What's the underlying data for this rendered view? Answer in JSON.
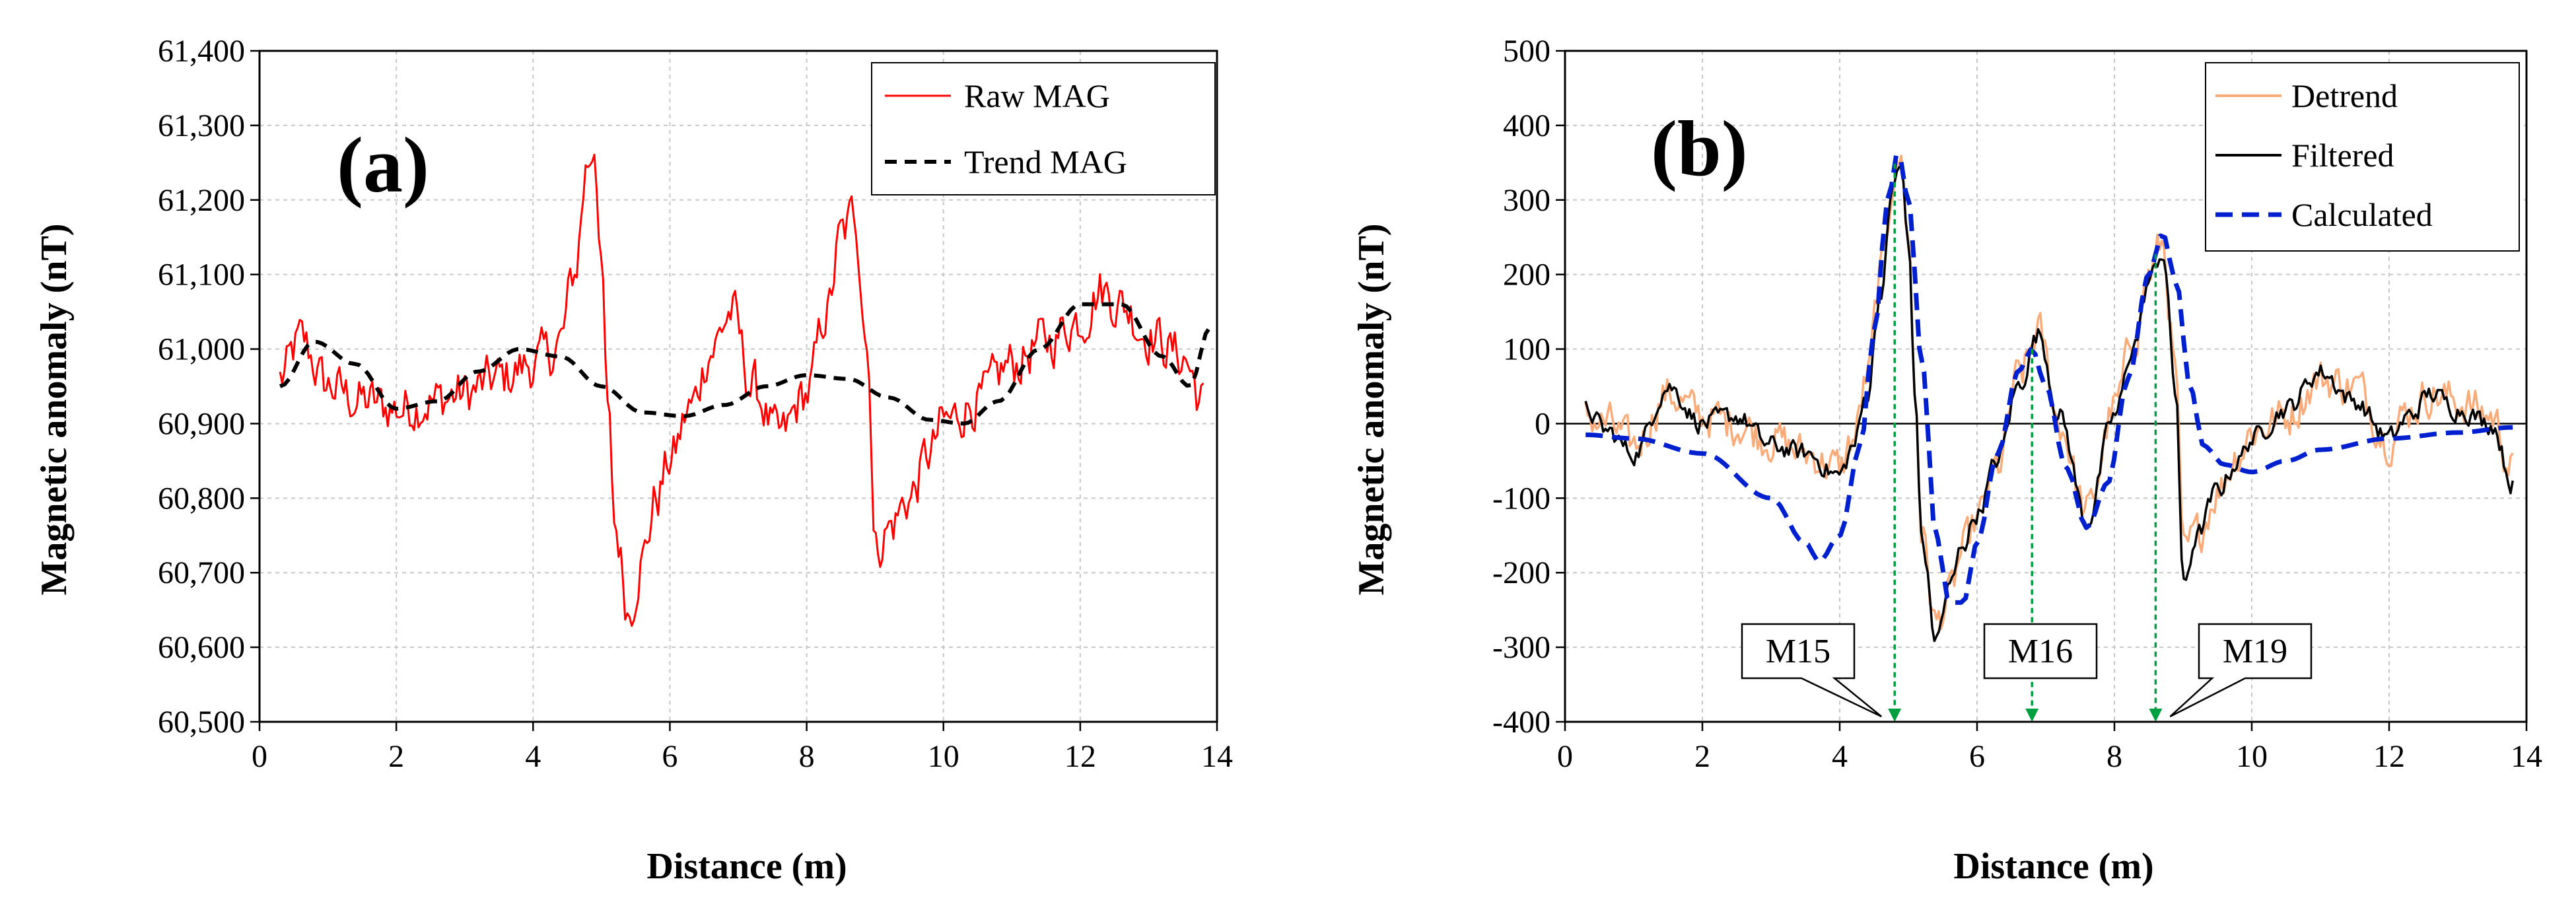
{
  "chart_data": [
    {
      "type": "line",
      "panel_label": "(a)",
      "xlabel": "Distance (m)",
      "ylabel": "Magnetic anomaly (nT)",
      "xlim": [
        0,
        14
      ],
      "ylim": [
        60500,
        61400
      ],
      "x_ticks": [
        0,
        2,
        4,
        6,
        8,
        10,
        12,
        14
      ],
      "y_ticks": [
        60500,
        60600,
        60700,
        60800,
        60900,
        61000,
        61100,
        61200,
        61300,
        61400
      ],
      "x_tick_labels": [
        "0",
        "2",
        "4",
        "6",
        "8",
        "10",
        "12",
        "14"
      ],
      "y_tick_labels": [
        "60,500",
        "60,600",
        "60,700",
        "60,800",
        "60,900",
        "61,000",
        "61,100",
        "61,200",
        "61,300",
        "61,400"
      ],
      "grid": true,
      "legend_position": "top-right",
      "series": [
        {
          "name": "Raw MAG",
          "color": "#ff0000",
          "style": "solid",
          "noise": 55,
          "x": [
            0.3,
            0.6,
            1.0,
            1.5,
            2.0,
            2.5,
            3.0,
            3.5,
            4.0,
            4.2,
            4.4,
            4.6,
            4.8,
            4.9,
            5.0,
            5.1,
            5.2,
            5.4,
            5.6,
            5.8,
            6.0,
            6.3,
            6.6,
            6.9,
            7.2,
            7.6,
            8.0,
            8.3,
            8.5,
            8.7,
            8.9,
            9.0,
            9.2,
            9.5,
            9.8,
            10.0,
            10.5,
            11.0,
            11.5,
            12.0,
            12.3,
            12.6,
            13.0,
            13.5,
            13.8
          ],
          "values": [
            60960,
            61010,
            60950,
            60930,
            60920,
            60930,
            60940,
            60960,
            60980,
            60990,
            61010,
            61100,
            61250,
            61280,
            61100,
            60900,
            60760,
            60650,
            60720,
            60800,
            60850,
            60920,
            61000,
            61050,
            60950,
            60880,
            60940,
            61050,
            61150,
            61180,
            61000,
            60730,
            60760,
            60800,
            60860,
            60900,
            60930,
            60980,
            61010,
            61040,
            61080,
            61060,
            61020,
            60990,
            60930
          ]
        },
        {
          "name": "Trend MAG",
          "color": "#000000",
          "style": "dashed",
          "x": [
            0.3,
            0.8,
            1.4,
            2.0,
            2.6,
            3.2,
            3.8,
            4.4,
            5.0,
            5.6,
            6.2,
            6.8,
            7.4,
            8.0,
            8.6,
            9.2,
            9.8,
            10.3,
            10.8,
            11.4,
            12.0,
            12.6,
            13.2,
            13.6,
            13.9
          ],
          "values": [
            60950,
            61010,
            60980,
            60920,
            60930,
            60970,
            61000,
            60990,
            60950,
            60915,
            60910,
            60925,
            60950,
            60965,
            60960,
            60935,
            60905,
            60900,
            60930,
            61000,
            61060,
            61060,
            60990,
            60950,
            61030
          ]
        }
      ]
    },
    {
      "type": "line",
      "panel_label": "(b)",
      "xlabel": "Distance (m)",
      "ylabel": "Magnetic anomaly (nT)",
      "xlim": [
        0,
        14
      ],
      "ylim": [
        -400,
        500
      ],
      "x_ticks": [
        0,
        2,
        4,
        6,
        8,
        10,
        12,
        14
      ],
      "y_ticks": [
        -400,
        -300,
        -200,
        -100,
        0,
        100,
        200,
        300,
        400,
        500
      ],
      "x_tick_labels": [
        "0",
        "2",
        "4",
        "6",
        "8",
        "10",
        "12",
        "14"
      ],
      "y_tick_labels": [
        "-400",
        "-300",
        "-200",
        "-100",
        "0",
        "100",
        "200",
        "300",
        "400",
        "500"
      ],
      "grid": true,
      "legend_position": "top-right",
      "series": [
        {
          "name": "Detrend",
          "color": "#f9ac7a",
          "style": "solid",
          "noise": 45,
          "x": [
            0.3,
            0.6,
            1.0,
            1.5,
            2.0,
            2.5,
            3.0,
            3.5,
            4.0,
            4.2,
            4.4,
            4.6,
            4.8,
            4.9,
            5.0,
            5.1,
            5.2,
            5.4,
            5.6,
            5.8,
            6.0,
            6.3,
            6.6,
            6.9,
            7.2,
            7.6,
            8.0,
            8.3,
            8.5,
            8.7,
            8.9,
            9.0,
            9.2,
            9.5,
            9.8,
            10.0,
            10.5,
            11.0,
            11.5,
            12.0,
            12.3,
            12.6,
            13.0,
            13.5,
            13.8
          ],
          "values": [
            10,
            0,
            -30,
            40,
            10,
            0,
            -20,
            -40,
            -60,
            -20,
            60,
            200,
            340,
            350,
            250,
            40,
            -150,
            -270,
            -230,
            -170,
            -130,
            -60,
            60,
            120,
            0,
            -120,
            20,
            120,
            200,
            240,
            60,
            -180,
            -150,
            -90,
            -40,
            -10,
            10,
            60,
            50,
            -20,
            20,
            40,
            30,
            10,
            -60
          ]
        },
        {
          "name": "Filtered",
          "color": "#000000",
          "style": "solid",
          "noise": 22,
          "x": [
            0.3,
            0.6,
            1.0,
            1.5,
            2.0,
            2.5,
            3.0,
            3.5,
            4.0,
            4.2,
            4.4,
            4.6,
            4.8,
            4.9,
            5.0,
            5.1,
            5.2,
            5.4,
            5.6,
            5.8,
            6.0,
            6.3,
            6.6,
            6.9,
            7.2,
            7.6,
            8.0,
            8.3,
            8.5,
            8.7,
            8.9,
            9.0,
            9.2,
            9.5,
            9.8,
            10.0,
            10.5,
            11.0,
            11.5,
            12.0,
            12.3,
            12.6,
            13.0,
            13.5,
            13.8
          ],
          "values": [
            20,
            -10,
            -40,
            50,
            0,
            10,
            -30,
            -40,
            -70,
            -30,
            40,
            180,
            330,
            340,
            240,
            30,
            -160,
            -290,
            -220,
            -160,
            -120,
            -50,
            50,
            120,
            10,
            -130,
            10,
            110,
            190,
            230,
            40,
            -220,
            -150,
            -90,
            -50,
            -20,
            20,
            70,
            30,
            -20,
            10,
            40,
            20,
            0,
            -80
          ]
        },
        {
          "name": "Calculated",
          "color": "#0020d0",
          "style": "dashed",
          "x": [
            0.3,
            1.0,
            2.0,
            3.0,
            3.5,
            3.7,
            4.0,
            4.3,
            4.5,
            4.7,
            4.85,
            5.0,
            5.2,
            5.4,
            5.6,
            5.8,
            6.0,
            6.3,
            6.6,
            6.8,
            7.0,
            7.3,
            7.6,
            7.9,
            8.2,
            8.5,
            8.7,
            8.9,
            9.1,
            9.3,
            9.6,
            10.0,
            10.5,
            11.0,
            12.0,
            13.0,
            13.8
          ],
          "values": [
            -15,
            -20,
            -40,
            -100,
            -160,
            -185,
            -150,
            -30,
            120,
            300,
            365,
            300,
            80,
            -150,
            -240,
            -240,
            -160,
            -40,
            70,
            100,
            50,
            -60,
            -140,
            -80,
            60,
            200,
            255,
            190,
            50,
            -30,
            -55,
            -65,
            -50,
            -35,
            -20,
            -12,
            -5
          ]
        }
      ],
      "annotations": [
        {
          "label": "M15",
          "x": 4.8
        },
        {
          "label": "M16",
          "x": 6.8
        },
        {
          "label": "M19",
          "x": 8.6
        }
      ]
    }
  ]
}
